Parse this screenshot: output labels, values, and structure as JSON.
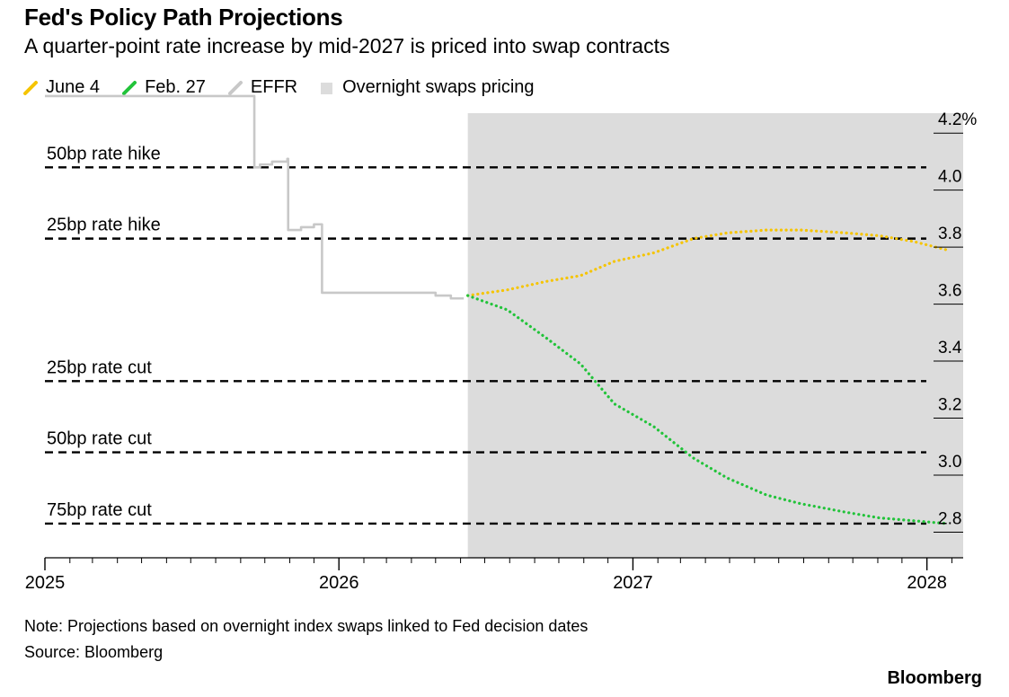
{
  "title": "Fed's Policy Path Projections",
  "subtitle": "A quarter-point rate increase by mid-2027 is priced into swap contracts",
  "note": "Note: Projections based on overnight index swaps linked to Fed decision dates",
  "source": "Source: Bloomberg",
  "brand": "Bloomberg",
  "legend": [
    {
      "label": "June 4",
      "color": "#f5c400",
      "kind": "line"
    },
    {
      "label": "Feb. 27",
      "color": "#22c33a",
      "kind": "line"
    },
    {
      "label": "EFFR",
      "color": "#c8c8c8",
      "kind": "line"
    },
    {
      "label": "Overnight swaps pricing",
      "color": "#dcdcdc",
      "kind": "box"
    }
  ],
  "chart_data": {
    "type": "line",
    "x_axis": {
      "ticks": [
        "2025",
        "2026",
        "2027",
        "2028"
      ],
      "range": [
        "2025-01-01",
        "2028-02-15"
      ]
    },
    "y_axis": {
      "range": [
        2.71,
        4.27
      ],
      "ticks": [
        "4.2%",
        "4.0",
        "3.8",
        "3.6",
        "3.4",
        "3.2",
        "3.0",
        "2.8"
      ],
      "position": "right"
    },
    "shaded_region": {
      "label": "Overnight swaps pricing",
      "start": "2026-06-10",
      "end": "2028-02-15",
      "color": "#dcdcdc"
    },
    "reference_lines": [
      {
        "label": "50bp rate hike",
        "y": 4.08
      },
      {
        "label": "25bp rate hike",
        "y": 3.83
      },
      {
        "label": "25bp rate cut",
        "y": 3.33
      },
      {
        "label": "50bp rate cut",
        "y": 3.08
      },
      {
        "label": "75bp rate cut",
        "y": 2.83
      }
    ],
    "series": [
      {
        "name": "EFFR",
        "color": "#c8c8c8",
        "style": "solid",
        "step": true,
        "points": [
          [
            "2025-01-01",
            4.33
          ],
          [
            "2025-09-17",
            4.33
          ],
          [
            "2025-09-18",
            4.08
          ],
          [
            "2025-09-25",
            4.09
          ],
          [
            "2025-10-10",
            4.1
          ],
          [
            "2025-10-29",
            4.11
          ],
          [
            "2025-10-30",
            3.86
          ],
          [
            "2025-11-15",
            3.87
          ],
          [
            "2025-12-01",
            3.88
          ],
          [
            "2025-12-10",
            3.88
          ],
          [
            "2025-12-11",
            3.64
          ],
          [
            "2026-04-30",
            3.64
          ],
          [
            "2026-05-01",
            3.63
          ],
          [
            "2026-05-20",
            3.62
          ],
          [
            "2026-06-05",
            3.62
          ]
        ]
      },
      {
        "name": "June 4",
        "color": "#f5c400",
        "style": "dotted",
        "points": [
          [
            "2026-06-10",
            3.63
          ],
          [
            "2026-07-29",
            3.65
          ],
          [
            "2026-09-16",
            3.68
          ],
          [
            "2026-10-28",
            3.7
          ],
          [
            "2026-12-09",
            3.75
          ],
          [
            "2027-01-27",
            3.78
          ],
          [
            "2027-03-17",
            3.83
          ],
          [
            "2027-04-28",
            3.85
          ],
          [
            "2027-06-16",
            3.86
          ],
          [
            "2027-07-28",
            3.86
          ],
          [
            "2027-09-22",
            3.85
          ],
          [
            "2027-11-03",
            3.84
          ],
          [
            "2027-12-15",
            3.82
          ],
          [
            "2028-01-26",
            3.79
          ]
        ]
      },
      {
        "name": "Feb. 27",
        "color": "#22c33a",
        "style": "dotted",
        "points": [
          [
            "2026-06-10",
            3.63
          ],
          [
            "2026-07-29",
            3.58
          ],
          [
            "2026-09-16",
            3.48
          ],
          [
            "2026-10-28",
            3.39
          ],
          [
            "2026-12-09",
            3.25
          ],
          [
            "2027-01-27",
            3.17
          ],
          [
            "2027-03-17",
            3.06
          ],
          [
            "2027-04-28",
            2.99
          ],
          [
            "2027-06-16",
            2.93
          ],
          [
            "2027-07-28",
            2.9
          ],
          [
            "2027-09-22",
            2.87
          ],
          [
            "2027-11-03",
            2.85
          ],
          [
            "2027-12-15",
            2.84
          ],
          [
            "2028-01-26",
            2.83
          ]
        ]
      }
    ]
  }
}
